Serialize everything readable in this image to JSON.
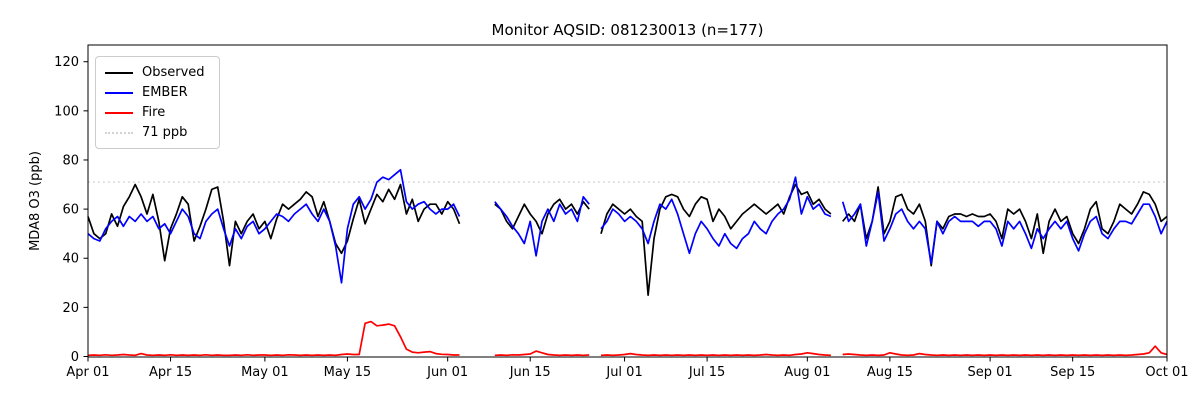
{
  "title": "Monitor AQSID: 081230013 (n=177)",
  "axes": {
    "ylabel": "MDA8 O3 (ppb)",
    "yticks": [
      0,
      20,
      40,
      60,
      80,
      100,
      120
    ],
    "xticks": [
      {
        "day": 0,
        "label": "Apr 01"
      },
      {
        "day": 14,
        "label": "Apr 15"
      },
      {
        "day": 30,
        "label": "May 01"
      },
      {
        "day": 44,
        "label": "May 15"
      },
      {
        "day": 61,
        "label": "Jun 01"
      },
      {
        "day": 75,
        "label": "Jun 15"
      },
      {
        "day": 91,
        "label": "Jul 01"
      },
      {
        "day": 105,
        "label": "Jul 15"
      },
      {
        "day": 122,
        "label": "Aug 01"
      },
      {
        "day": 136,
        "label": "Aug 15"
      },
      {
        "day": 153,
        "label": "Sep 01"
      },
      {
        "day": 167,
        "label": "Sep 15"
      },
      {
        "day": 183,
        "label": "Oct 01"
      }
    ]
  },
  "legend": {
    "items": [
      {
        "label": "Observed",
        "color": "#000000",
        "style": "solid"
      },
      {
        "label": "EMBER",
        "color": "#0000ff",
        "style": "solid"
      },
      {
        "label": "Fire",
        "color": "#ff0000",
        "style": "solid"
      },
      {
        "label": "71 ppb",
        "color": "#d3d3d3",
        "style": "dotted"
      }
    ]
  },
  "chart_data": {
    "type": "line",
    "title": "Monitor AQSID: 081230013 (n=177)",
    "xlabel": "",
    "ylabel": "MDA8 O3 (ppb)",
    "x_unit": "days since Apr 01 (daily values, Apr 01 - Oct 01)",
    "x_range": [
      0,
      183
    ],
    "ylim": [
      0,
      126.8
    ],
    "n_observations": 177,
    "missing_days": [
      "Jun 04",
      "Jun 05",
      "Jun 06",
      "Jun 07",
      "Jun 08",
      "Jun 26",
      "Aug 06"
    ],
    "threshold": {
      "value": 71,
      "label": "71 ppb",
      "color": "#d3d3d3",
      "style": "dotted"
    },
    "series": [
      {
        "name": "Observed",
        "color": "#000000",
        "values": [
          57,
          50,
          48,
          50,
          58,
          53,
          61,
          65,
          70,
          65,
          58,
          66,
          55,
          39,
          52,
          58,
          65,
          62,
          47,
          53,
          60,
          68,
          69,
          55,
          37,
          55,
          50,
          55,
          58,
          52,
          55,
          48,
          56,
          62,
          60,
          62,
          64,
          67,
          65,
          57,
          63,
          55,
          46,
          42,
          47,
          56,
          64,
          54,
          60,
          66,
          63,
          68,
          64,
          70,
          58,
          64,
          55,
          60,
          62,
          62,
          58,
          63,
          60,
          54,
          null,
          null,
          null,
          null,
          null,
          62,
          60,
          55,
          52,
          57,
          62,
          58,
          55,
          50,
          58,
          62,
          64,
          60,
          62,
          58,
          63,
          60,
          null,
          50,
          58,
          62,
          60,
          58,
          60,
          57,
          55,
          25,
          48,
          60,
          65,
          66,
          65,
          60,
          57,
          62,
          65,
          64,
          55,
          60,
          57,
          52,
          55,
          58,
          60,
          62,
          60,
          58,
          60,
          62,
          58,
          65,
          70,
          66,
          67,
          62,
          64,
          60,
          58,
          null,
          55,
          58,
          55,
          62,
          48,
          55,
          69,
          50,
          55,
          65,
          66,
          60,
          58,
          62,
          55,
          37,
          55,
          52,
          57,
          58,
          58,
          57,
          58,
          57,
          57,
          58,
          55,
          48,
          60,
          58,
          60,
          55,
          48,
          58,
          42,
          55,
          60,
          55,
          57,
          50,
          46,
          52,
          60,
          63,
          52,
          50,
          55,
          62,
          60,
          58,
          62,
          67,
          66,
          62,
          55,
          57
        ]
      },
      {
        "name": "EMBER",
        "color": "#0000ff",
        "values": [
          50,
          48,
          47,
          52,
          55,
          57,
          53,
          57,
          55,
          58,
          55,
          57,
          52,
          54,
          50,
          55,
          60,
          57,
          50,
          48,
          55,
          58,
          60,
          52,
          45,
          52,
          48,
          53,
          55,
          50,
          52,
          55,
          58,
          57,
          55,
          58,
          60,
          62,
          58,
          55,
          60,
          55,
          45,
          30,
          52,
          62,
          65,
          60,
          64,
          71,
          73,
          72,
          74,
          76,
          63,
          60,
          62,
          63,
          60,
          58,
          60,
          60,
          62,
          57,
          null,
          null,
          null,
          null,
          null,
          63,
          60,
          57,
          53,
          50,
          46,
          55,
          41,
          55,
          60,
          55,
          62,
          58,
          60,
          55,
          65,
          62,
          null,
          52,
          55,
          60,
          58,
          55,
          57,
          55,
          52,
          46,
          55,
          62,
          60,
          64,
          58,
          50,
          42,
          50,
          55,
          52,
          48,
          45,
          50,
          46,
          44,
          48,
          50,
          55,
          52,
          50,
          55,
          58,
          60,
          64,
          73,
          58,
          65,
          60,
          62,
          58,
          57,
          null,
          63,
          55,
          58,
          62,
          45,
          55,
          67,
          47,
          52,
          58,
          60,
          55,
          52,
          55,
          52,
          38,
          55,
          50,
          55,
          57,
          55,
          55,
          55,
          53,
          55,
          55,
          52,
          45,
          55,
          52,
          55,
          50,
          44,
          52,
          48,
          52,
          55,
          52,
          55,
          48,
          43,
          50,
          55,
          57,
          50,
          48,
          52,
          55,
          55,
          54,
          58,
          62,
          62,
          57,
          50,
          55
        ]
      },
      {
        "name": "Fire",
        "color": "#ff0000",
        "values": [
          0.5,
          0.6,
          0.5,
          0.7,
          0.5,
          0.6,
          0.8,
          0.6,
          0.5,
          1.2,
          0.6,
          0.5,
          0.6,
          0.5,
          0.7,
          0.5,
          0.6,
          0.5,
          0.6,
          0.5,
          0.7,
          0.5,
          0.6,
          0.5,
          0.5,
          0.6,
          0.5,
          0.7,
          0.5,
          0.6,
          0.6,
          0.5,
          0.6,
          0.5,
          0.7,
          0.6,
          0.5,
          0.6,
          0.5,
          0.6,
          0.5,
          0.6,
          0.5,
          0.8,
          1.0,
          0.8,
          0.8,
          13.5,
          14.2,
          12.5,
          12.8,
          13.2,
          12.5,
          8.0,
          3.0,
          1.8,
          1.5,
          1.8,
          2.0,
          1.2,
          0.9,
          0.8,
          0.6,
          0.6,
          null,
          null,
          null,
          null,
          null,
          0.5,
          0.6,
          0.5,
          0.7,
          0.6,
          0.8,
          1.0,
          2.2,
          1.5,
          0.8,
          0.6,
          0.5,
          0.6,
          0.5,
          0.6,
          0.5,
          0.6,
          null,
          0.5,
          0.6,
          0.5,
          0.6,
          0.8,
          1.2,
          0.8,
          0.6,
          0.5,
          0.6,
          0.5,
          0.6,
          0.5,
          0.6,
          0.5,
          0.6,
          0.5,
          0.6,
          0.5,
          0.6,
          0.5,
          0.6,
          0.5,
          0.6,
          0.5,
          0.6,
          0.5,
          0.6,
          0.8,
          0.6,
          0.5,
          0.6,
          0.5,
          0.8,
          1.0,
          1.5,
          1.2,
          0.8,
          0.6,
          0.5,
          null,
          0.8,
          1.0,
          0.8,
          0.6,
          0.5,
          0.6,
          0.5,
          0.6,
          1.5,
          1.0,
          0.6,
          0.5,
          0.6,
          1.2,
          0.8,
          0.6,
          0.5,
          0.6,
          0.5,
          0.6,
          0.5,
          0.6,
          0.5,
          0.6,
          0.5,
          0.6,
          0.5,
          0.6,
          0.5,
          0.6,
          0.5,
          0.6,
          0.5,
          0.6,
          0.5,
          0.6,
          0.5,
          0.6,
          0.5,
          0.6,
          0.5,
          0.6,
          0.5,
          0.6,
          0.5,
          0.6,
          0.5,
          0.6,
          0.5,
          0.6,
          0.8,
          1.0,
          1.5,
          4.2,
          1.5,
          0.8
        ]
      }
    ]
  }
}
